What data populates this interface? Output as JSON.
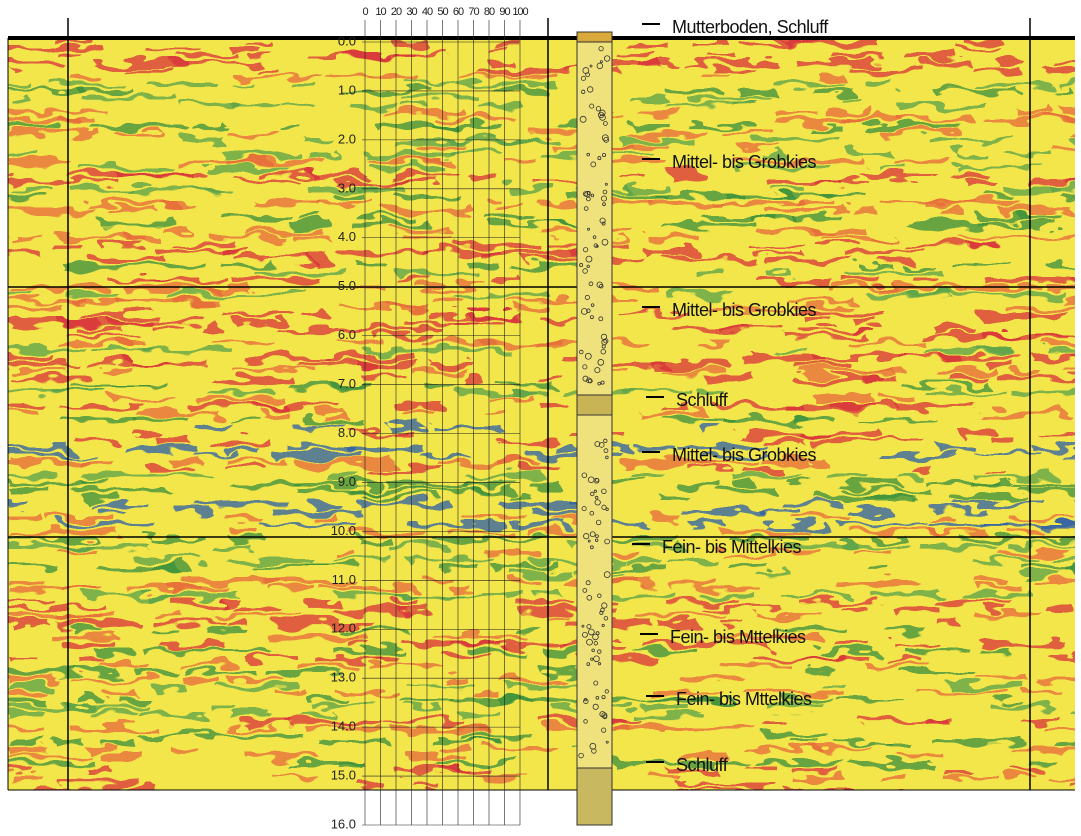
{
  "depth_axis": {
    "labels": [
      "0.0",
      "1.0",
      "2.0",
      "3.0",
      "4.0",
      "5.0",
      "6.0",
      "7.0",
      "8.0",
      "9.0",
      "10.0",
      "11.0",
      "12.0",
      "13.0",
      "14.0",
      "15.0",
      "16.0"
    ]
  },
  "percent_scale": {
    "labels": [
      "0",
      "10",
      "20",
      "30",
      "40",
      "50",
      "60",
      "70",
      "80",
      "90",
      "100"
    ]
  },
  "layers": [
    {
      "label": "Mutterboden, Schluff"
    },
    {
      "label": "Mittel- bis Grobkies"
    },
    {
      "label": "Mittel- bis Grobkies"
    },
    {
      "label": "Schluff"
    },
    {
      "label": "Mittel- bis Grobkies"
    },
    {
      "label": "Fein- bis Mittelkies"
    },
    {
      "label": "Fein- bis Mttelkies"
    },
    {
      "label": "Fein- bis Mttelkies"
    },
    {
      "label": "Schluff"
    }
  ]
}
